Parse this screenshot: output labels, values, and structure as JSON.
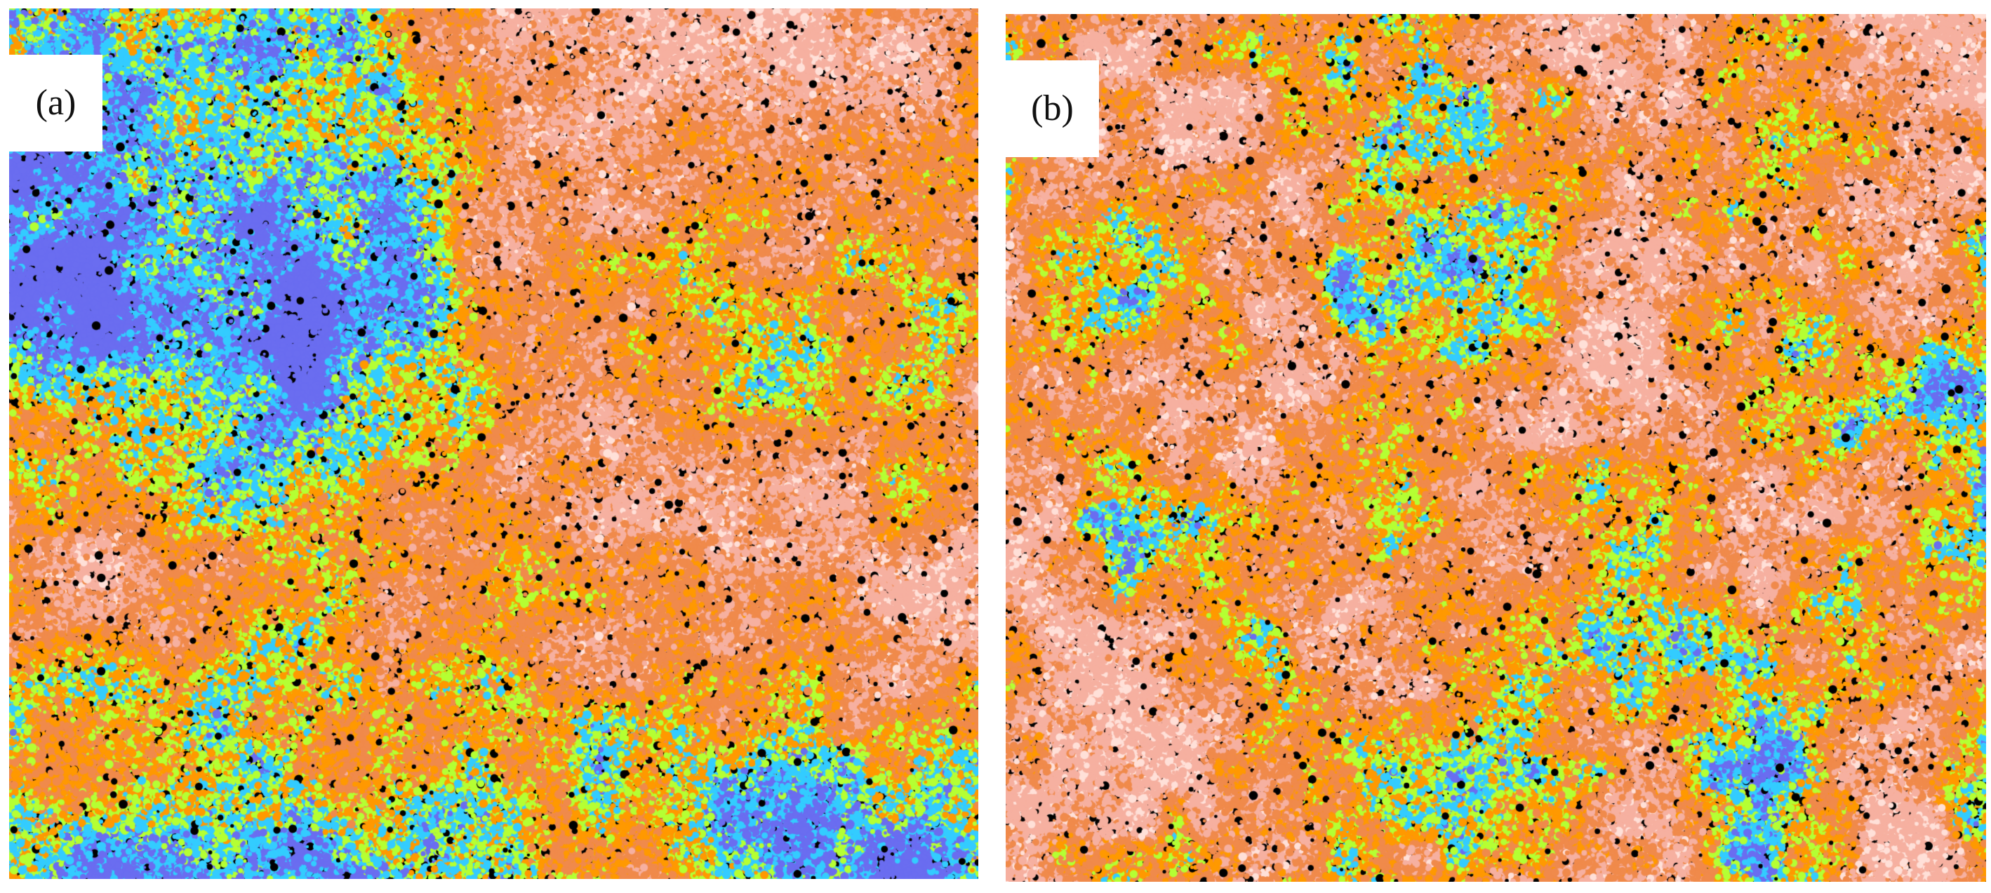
{
  "panels": [
    {
      "label": "(a)",
      "dominant_colors": [
        "#f08a4b",
        "#ff9900",
        "#33ccff",
        "#6a6df0",
        "#b5ff33",
        "#f6b0a0",
        "#000000"
      ]
    },
    {
      "label": "(b)",
      "dominant_colors": [
        "#f08a4b",
        "#ff9900",
        "#33ccff",
        "#6a6df0",
        "#b5ff33",
        "#f6b0a0",
        "#000000"
      ]
    }
  ]
}
